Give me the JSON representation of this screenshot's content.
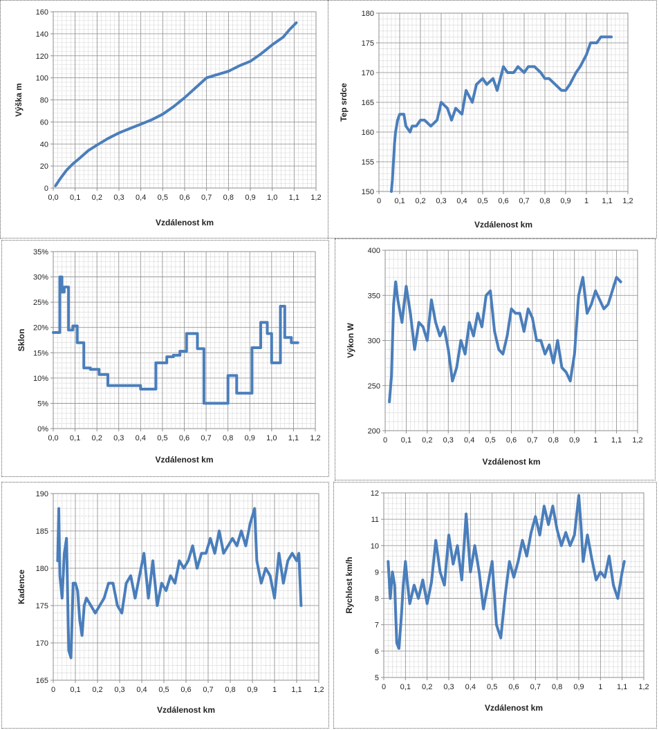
{
  "chart_data": [
    {
      "type": "line",
      "xlabel": "Vzdálenost km",
      "ylabel": "Výška m",
      "xlim": [
        0,
        1.2
      ],
      "ylim": [
        0,
        160
      ],
      "x_ticks": [
        "0,0",
        "0,1",
        "0,2",
        "0,3",
        "0,4",
        "0,5",
        "0,6",
        "0,7",
        "0,8",
        "0,9",
        "1,0",
        "1,1",
        "1,2"
      ],
      "y_ticks": [
        "0",
        "20",
        "40",
        "60",
        "80",
        "100",
        "120",
        "140",
        "160"
      ],
      "grid": true,
      "line_color": "#4a7ebb",
      "series": [
        {
          "x": [
            0.01,
            0.03,
            0.06,
            0.09,
            0.12,
            0.16,
            0.2,
            0.25,
            0.3,
            0.35,
            0.4,
            0.45,
            0.5,
            0.55,
            0.6,
            0.65,
            0.7,
            0.75,
            0.8,
            0.85,
            0.9,
            0.95,
            1.0,
            1.05,
            1.08,
            1.11
          ],
          "values": [
            2,
            8,
            16,
            22,
            27,
            34,
            39,
            45,
            50,
            54,
            58,
            62,
            67,
            74,
            82,
            91,
            100,
            103,
            106,
            111,
            115,
            122,
            130,
            137,
            144,
            150
          ]
        }
      ]
    },
    {
      "type": "line",
      "xlabel": "Vzdálenost km",
      "ylabel": "Tep srdce",
      "xlim": [
        0,
        1.2
      ],
      "ylim": [
        150,
        180
      ],
      "x_ticks": [
        "0",
        "0,1",
        "0,2",
        "0,3",
        "0,4",
        "0,5",
        "0,6",
        "0,7",
        "0,8",
        "0,9",
        "1",
        "1,1",
        "1,2"
      ],
      "y_ticks": [
        "150",
        "155",
        "160",
        "165",
        "170",
        "175",
        "180"
      ],
      "grid": true,
      "line_color": "#4a7ebb",
      "series": [
        {
          "x": [
            0.06,
            0.065,
            0.07,
            0.075,
            0.08,
            0.085,
            0.09,
            0.1,
            0.12,
            0.13,
            0.15,
            0.16,
            0.18,
            0.2,
            0.22,
            0.25,
            0.28,
            0.3,
            0.33,
            0.35,
            0.37,
            0.4,
            0.42,
            0.45,
            0.47,
            0.5,
            0.52,
            0.55,
            0.57,
            0.6,
            0.62,
            0.65,
            0.67,
            0.7,
            0.72,
            0.75,
            0.78,
            0.8,
            0.82,
            0.85,
            0.88,
            0.9,
            0.92,
            0.95,
            0.97,
            1.0,
            1.02,
            1.05,
            1.07,
            1.1,
            1.12
          ],
          "values": [
            150,
            152,
            155,
            158,
            160,
            161,
            162,
            163,
            163,
            161,
            160,
            161,
            161,
            162,
            162,
            161,
            162,
            165,
            164,
            162,
            164,
            163,
            167,
            165,
            168,
            169,
            168,
            169,
            167,
            171,
            170,
            170,
            171,
            170,
            171,
            171,
            170,
            169,
            169,
            168,
            167,
            167,
            168,
            170,
            171,
            173,
            175,
            175,
            176,
            176,
            176
          ]
        }
      ]
    },
    {
      "type": "line",
      "xlabel": "Vzdálenost km",
      "ylabel": "Sklon",
      "xlim": [
        0,
        1.2
      ],
      "ylim": [
        0,
        35
      ],
      "x_ticks": [
        "0,0",
        "0,1",
        "0,2",
        "0,3",
        "0,4",
        "0,5",
        "0,6",
        "0,7",
        "0,8",
        "0,9",
        "1,0",
        "1,1",
        "1,2"
      ],
      "y_ticks": [
        "0%",
        "5%",
        "10%",
        "15%",
        "20%",
        "25%",
        "30%",
        "35%"
      ],
      "grid": true,
      "line_color": "#4a7ebb",
      "series": [
        {
          "x": [
            0.0,
            0.03,
            0.03,
            0.04,
            0.04,
            0.05,
            0.05,
            0.07,
            0.07,
            0.09,
            0.09,
            0.11,
            0.11,
            0.14,
            0.14,
            0.17,
            0.17,
            0.21,
            0.21,
            0.25,
            0.25,
            0.3,
            0.3,
            0.4,
            0.4,
            0.47,
            0.47,
            0.52,
            0.52,
            0.55,
            0.55,
            0.58,
            0.58,
            0.61,
            0.61,
            0.66,
            0.66,
            0.69,
            0.69,
            0.8,
            0.8,
            0.84,
            0.84,
            0.91,
            0.91,
            0.95,
            0.95,
            0.98,
            0.98,
            1.0,
            1.0,
            1.04,
            1.04,
            1.06,
            1.06,
            1.09,
            1.09,
            1.12
          ],
          "values": [
            19,
            19,
            30,
            30,
            27,
            27,
            28,
            28,
            19.5,
            19.5,
            20.3,
            20.3,
            17,
            17,
            12,
            12,
            11.7,
            11.7,
            10.7,
            10.7,
            8.5,
            8.5,
            8.5,
            8.5,
            7.8,
            7.8,
            13,
            13,
            14.2,
            14.2,
            14.5,
            14.5,
            15.3,
            15.3,
            18.8,
            18.8,
            15.8,
            15.8,
            5,
            5,
            10.5,
            10.5,
            7,
            7,
            16,
            16,
            21,
            21,
            18.8,
            18.8,
            13,
            13,
            24.2,
            24.2,
            18,
            18,
            17,
            17
          ]
        }
      ]
    },
    {
      "type": "line",
      "xlabel": "Vzdálenost km",
      "ylabel": "Výkon W",
      "xlim": [
        0,
        1.2
      ],
      "ylim": [
        200,
        400
      ],
      "x_ticks": [
        "0",
        "0,1",
        "0,2",
        "0,3",
        "0,4",
        "0,5",
        "0,6",
        "0,7",
        "0,8",
        "0,9",
        "1",
        "1,1",
        "1,2"
      ],
      "y_ticks": [
        "200",
        "250",
        "300",
        "350",
        "400"
      ],
      "grid": true,
      "line_color": "#4a7ebb",
      "series": [
        {
          "x": [
            0.02,
            0.03,
            0.04,
            0.05,
            0.06,
            0.08,
            0.1,
            0.12,
            0.14,
            0.16,
            0.18,
            0.2,
            0.22,
            0.24,
            0.26,
            0.28,
            0.3,
            0.32,
            0.34,
            0.36,
            0.38,
            0.4,
            0.42,
            0.44,
            0.46,
            0.48,
            0.5,
            0.52,
            0.54,
            0.56,
            0.58,
            0.6,
            0.62,
            0.64,
            0.66,
            0.68,
            0.7,
            0.72,
            0.74,
            0.76,
            0.78,
            0.8,
            0.82,
            0.84,
            0.86,
            0.88,
            0.9,
            0.92,
            0.94,
            0.96,
            0.98,
            1.0,
            1.02,
            1.04,
            1.06,
            1.08,
            1.1,
            1.12
          ],
          "values": [
            232,
            260,
            340,
            365,
            345,
            320,
            360,
            330,
            290,
            320,
            315,
            300,
            345,
            320,
            305,
            315,
            290,
            255,
            270,
            300,
            285,
            320,
            305,
            330,
            315,
            350,
            355,
            310,
            290,
            285,
            305,
            335,
            330,
            330,
            310,
            335,
            325,
            300,
            300,
            285,
            295,
            275,
            300,
            270,
            265,
            255,
            285,
            350,
            370,
            330,
            340,
            355,
            345,
            335,
            340,
            355,
            370,
            365
          ]
        }
      ]
    },
    {
      "type": "line",
      "xlabel": "Vzdálenost km",
      "ylabel": "Kadence",
      "xlim": [
        0,
        1.2
      ],
      "ylim": [
        165,
        190
      ],
      "x_ticks": [
        "0",
        "0,1",
        "0,2",
        "0,3",
        "0,4",
        "0,5",
        "0,6",
        "0,7",
        "0,8",
        "0,9",
        "1",
        "1,1",
        "1,2"
      ],
      "y_ticks": [
        "165",
        "170",
        "175",
        "180",
        "185",
        "190"
      ],
      "grid": true,
      "line_color": "#4a7ebb",
      "series": [
        {
          "x": [
            0.02,
            0.025,
            0.03,
            0.04,
            0.05,
            0.06,
            0.07,
            0.08,
            0.09,
            0.1,
            0.11,
            0.12,
            0.13,
            0.14,
            0.15,
            0.17,
            0.19,
            0.21,
            0.23,
            0.25,
            0.27,
            0.29,
            0.31,
            0.33,
            0.35,
            0.37,
            0.39,
            0.41,
            0.43,
            0.45,
            0.47,
            0.49,
            0.51,
            0.53,
            0.55,
            0.57,
            0.59,
            0.61,
            0.63,
            0.65,
            0.67,
            0.69,
            0.71,
            0.73,
            0.75,
            0.77,
            0.79,
            0.81,
            0.83,
            0.85,
            0.87,
            0.89,
            0.91,
            0.92,
            0.94,
            0.96,
            0.98,
            1.0,
            1.02,
            1.04,
            1.06,
            1.08,
            1.1,
            1.11,
            1.12
          ],
          "values": [
            181,
            188,
            179,
            176,
            182,
            184,
            169,
            168,
            178,
            178,
            177,
            173,
            171,
            175,
            176,
            175,
            174,
            175,
            176,
            178,
            178,
            175,
            174,
            178,
            179,
            176,
            179,
            182,
            176,
            181,
            175,
            178,
            177,
            179,
            178,
            181,
            180,
            181,
            183,
            180,
            182,
            182,
            184,
            182,
            185,
            182,
            183,
            184,
            183,
            185,
            183,
            186,
            188,
            181,
            178,
            180,
            179,
            176,
            182,
            178,
            181,
            182,
            181,
            182,
            175
          ]
        }
      ]
    },
    {
      "type": "line",
      "xlabel": "Vzdálenost km",
      "ylabel": "Rychlost km/h",
      "xlim": [
        0,
        1.2
      ],
      "ylim": [
        5,
        12
      ],
      "x_ticks": [
        "0",
        "0,1",
        "0,2",
        "0,3",
        "0,4",
        "0,5",
        "0,6",
        "0,7",
        "0,8",
        "0,9",
        "1",
        "1,1",
        "1,2"
      ],
      "y_ticks": [
        "5",
        "6",
        "7",
        "8",
        "9",
        "10",
        "11",
        "12"
      ],
      "grid": true,
      "line_color": "#4a7ebb",
      "series": [
        {
          "x": [
            0.02,
            0.03,
            0.04,
            0.05,
            0.06,
            0.07,
            0.08,
            0.09,
            0.1,
            0.11,
            0.12,
            0.14,
            0.16,
            0.18,
            0.2,
            0.22,
            0.24,
            0.26,
            0.28,
            0.3,
            0.32,
            0.34,
            0.36,
            0.38,
            0.4,
            0.42,
            0.44,
            0.46,
            0.48,
            0.5,
            0.52,
            0.54,
            0.56,
            0.58,
            0.6,
            0.62,
            0.64,
            0.66,
            0.68,
            0.7,
            0.72,
            0.74,
            0.76,
            0.78,
            0.8,
            0.82,
            0.84,
            0.86,
            0.88,
            0.9,
            0.91,
            0.92,
            0.94,
            0.96,
            0.98,
            1.0,
            1.02,
            1.04,
            1.06,
            1.08,
            1.1,
            1.11
          ],
          "values": [
            9.4,
            8.0,
            9.0,
            8.5,
            6.3,
            6.1,
            7.2,
            8.5,
            9.4,
            8.5,
            7.8,
            8.5,
            8.0,
            8.7,
            7.8,
            8.6,
            10.2,
            9.0,
            8.5,
            10.4,
            9.3,
            10.0,
            8.7,
            11.2,
            9.0,
            10.0,
            9.0,
            7.6,
            8.5,
            9.4,
            7.0,
            6.5,
            8.1,
            9.4,
            8.8,
            9.4,
            10.2,
            9.6,
            10.5,
            11.1,
            10.4,
            11.5,
            10.8,
            11.5,
            10.6,
            10.0,
            10.5,
            10.0,
            10.4,
            11.9,
            10.8,
            9.4,
            10.4,
            9.5,
            8.7,
            9.0,
            8.8,
            9.6,
            8.5,
            8.0,
            9.0,
            9.4
          ]
        }
      ]
    }
  ]
}
